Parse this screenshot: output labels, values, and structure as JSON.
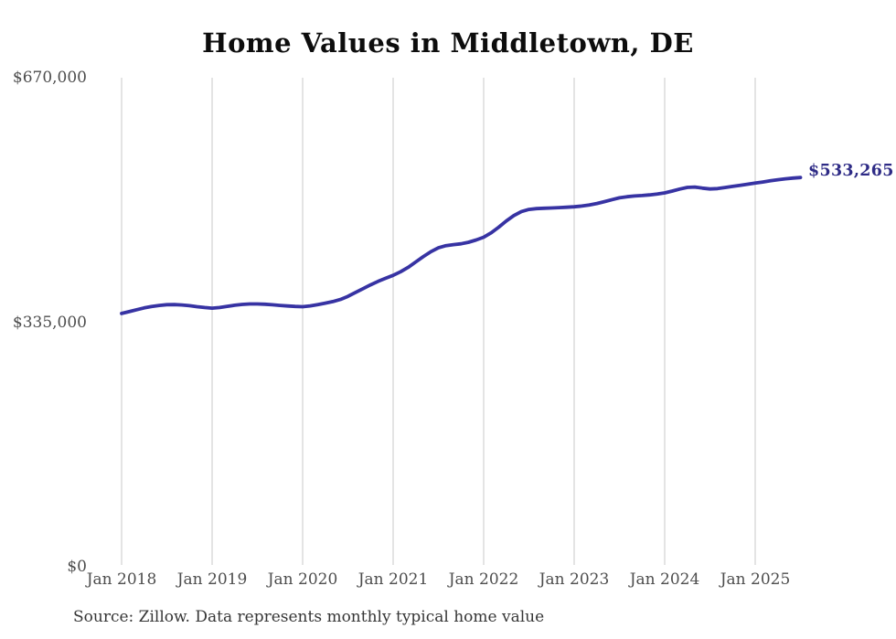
{
  "title": "Home Values in Middletown, DE",
  "end_label": "$533,265",
  "source_note": "Source: Zillow. Data represents monthly typical home value",
  "colors": {
    "background": "#ffffff",
    "line": "#3733a3",
    "end_label_text": "#2e2b86",
    "gridline": "#c8c8c8",
    "axis_text": "#4d4d4d",
    "title_text": "#0d0d0d",
    "source_text": "#363636"
  },
  "chart_data": {
    "type": "line",
    "title": "Home Values in Middletown, DE",
    "xlabel": "",
    "ylabel": "",
    "ylim": [
      0,
      670000
    ],
    "y_ticks": [
      {
        "label": "$0",
        "value": 0
      },
      {
        "label": "$335,000",
        "value": 335000
      },
      {
        "label": "$670,000",
        "value": 670000
      }
    ],
    "x_tick_labels": [
      "Jan 2018",
      "Jan 2019",
      "Jan 2020",
      "Jan 2021",
      "Jan 2022",
      "Jan 2023",
      "Jan 2024",
      "Jan 2025"
    ],
    "grid": "vertical-only",
    "legend": "none",
    "last_point_label": "$533,265",
    "last_value": 533265,
    "series": [
      {
        "name": "Typical home value",
        "unit": "USD",
        "cadence": "monthly",
        "start": "Jan 2018",
        "end": "Jul 2025",
        "values": [
          347000,
          349500,
          352200,
          354600,
          356600,
          358100,
          359100,
          359200,
          358700,
          357700,
          356300,
          355100,
          354300,
          355100,
          356800,
          358300,
          359400,
          360000,
          360100,
          359700,
          358900,
          358100,
          357300,
          356700,
          356300,
          357400,
          359200,
          361200,
          363300,
          366200,
          370500,
          375800,
          381000,
          386200,
          391000,
          395200,
          399200,
          404200,
          410300,
          417600,
          424900,
          431700,
          437000,
          440000,
          441300,
          442400,
          444600,
          447700,
          451500,
          457600,
          465300,
          473700,
          481100,
          486600,
          489600,
          490700,
          491200,
          491600,
          492100,
          492600,
          493200,
          494200,
          495700,
          497700,
          500200,
          503000,
          505400,
          506900,
          507900,
          508600,
          509500,
          510700,
          512200,
          514700,
          517500,
          519700,
          520200,
          518700,
          517600,
          518100,
          519600,
          521100,
          522600,
          524100,
          525600,
          527100,
          528700,
          530200,
          531500,
          532500,
          533265
        ]
      }
    ]
  }
}
